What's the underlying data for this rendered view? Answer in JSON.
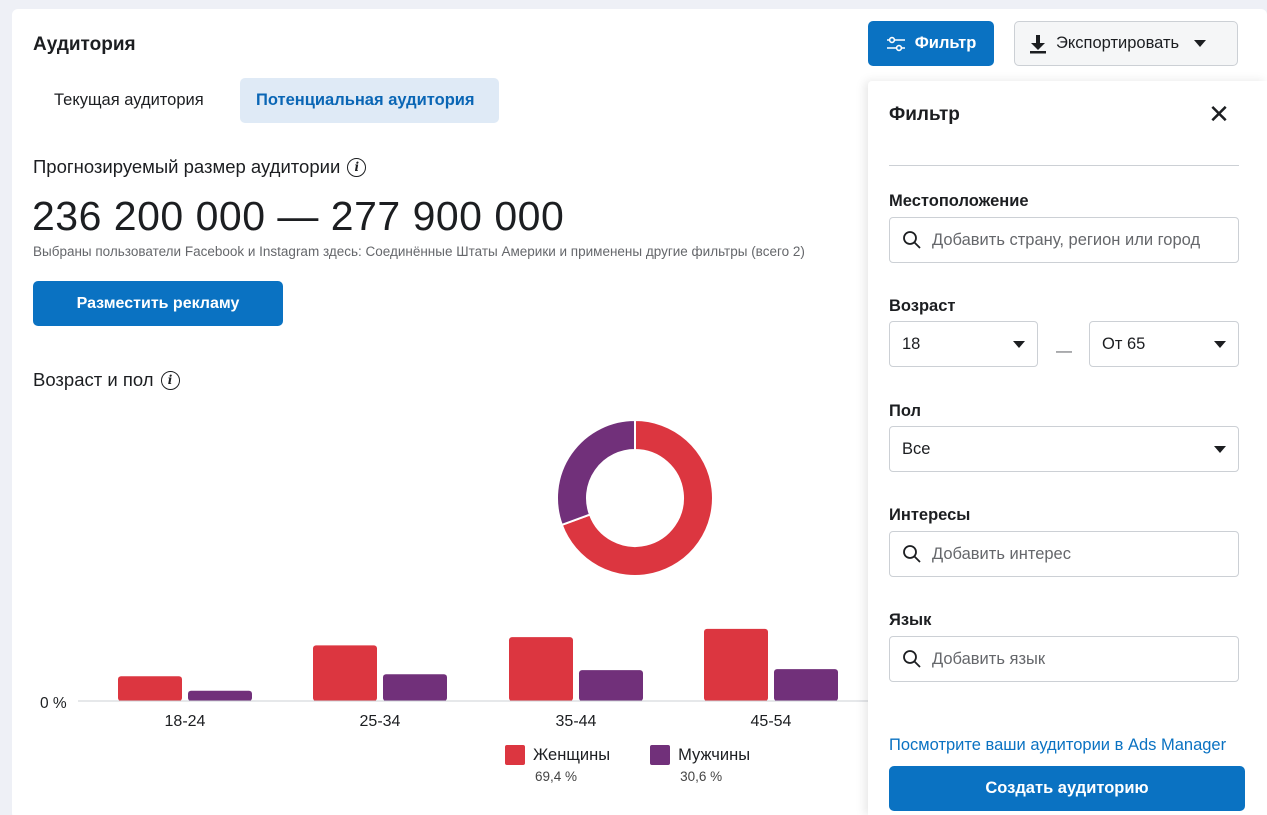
{
  "header": {
    "title": "Аудитория",
    "filter_label": "Фильтр",
    "export_label": "Экспортировать"
  },
  "tabs": [
    {
      "label": "Текущая аудитория",
      "active": false
    },
    {
      "label": "Потенциальная аудитория",
      "active": true
    }
  ],
  "audience_size": {
    "title": "Прогнозируемый размер аудитории",
    "range": "236 200 000 — 277 900 000",
    "subtitle": "Выбраны пользователи Facebook и Instagram здесь: Соединённые Штаты Америки и применены другие фильтры (всего 2)"
  },
  "place_ad_label": "Разместить рекламу",
  "age_gender": {
    "title": "Возраст и пол"
  },
  "chart_data": {
    "type": "bar",
    "categories": [
      "18-24",
      "25-34",
      "35-44",
      "45-54"
    ],
    "series": [
      {
        "name": "Женщины",
        "values": [
          2.4,
          5.4,
          6.2,
          7.0
        ]
      },
      {
        "name": "Мужчины",
        "values": [
          1.0,
          2.6,
          3.0,
          3.1
        ]
      }
    ],
    "y_tick": "0 %",
    "colors": {
      "women": "#dc3640",
      "men": "#71307a"
    },
    "donut": {
      "women_pct": 69.4,
      "men_pct": 30.6
    },
    "legend": [
      {
        "label": "Женщины",
        "pct": "69,4 %"
      },
      {
        "label": "Мужчины",
        "pct": "30,6 %"
      }
    ]
  },
  "filter_panel": {
    "title": "Фильтр",
    "location": {
      "label": "Местоположение",
      "placeholder": "Добавить страну, регион или город"
    },
    "age": {
      "label": "Возраст",
      "from": "18",
      "to": "От 65"
    },
    "gender": {
      "label": "Пол",
      "value": "Все"
    },
    "interests": {
      "label": "Интересы",
      "placeholder": "Добавить интерес"
    },
    "language": {
      "label": "Язык",
      "placeholder": "Добавить язык"
    },
    "ads_manager_link": "Посмотрите ваши аудитории в Ads Manager",
    "create_label": "Создать аудиторию"
  }
}
